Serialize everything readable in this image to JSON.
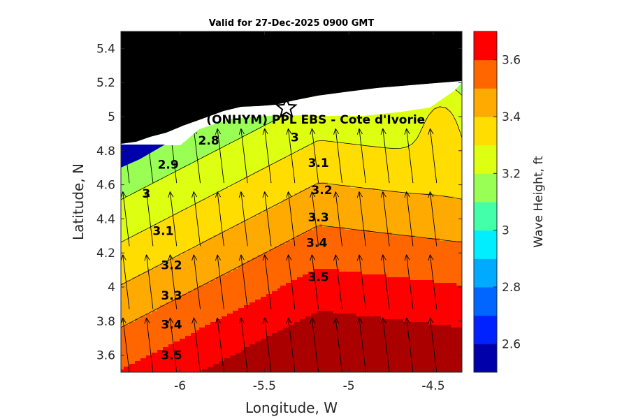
{
  "chart_data": {
    "type": "contour",
    "title": "Valid for 27-Dec-2025 0900 GMT",
    "xlabel": "Longitude, W",
    "ylabel": "Latitude, N",
    "xlim": [
      -6.35,
      -4.33
    ],
    "ylim": [
      3.5,
      5.5
    ],
    "xticks": [
      -6,
      -5.5,
      -5,
      -4.5
    ],
    "xtick_labels": [
      "-6",
      "-5.5",
      "-5",
      "-4.5"
    ],
    "yticks": [
      3.6,
      3.8,
      4.0,
      4.2,
      4.4,
      4.6,
      4.8,
      5.0,
      5.2,
      5.4
    ],
    "ytick_labels": [
      "3.6",
      "3.8",
      "4",
      "4.2",
      "4.4",
      "4.6",
      "4.8",
      "5",
      "5.2",
      "5.4"
    ],
    "colorbar": {
      "label": "Wave Height, ft",
      "range": [
        2.5,
        3.7
      ],
      "ticks": [
        2.6,
        2.8,
        3.0,
        3.2,
        3.4,
        3.6
      ],
      "tick_labels": [
        "2.6",
        "2.8",
        "3",
        "3.2",
        "3.4",
        "3.6"
      ],
      "levels": [
        2.5,
        2.6,
        2.7,
        2.8,
        2.9,
        3.0,
        3.1,
        3.2,
        3.3,
        3.4,
        3.5,
        3.6,
        3.7
      ],
      "colors": [
        "#0000aa",
        "#0022ff",
        "#0066ff",
        "#00aaff",
        "#00eeff",
        "#44ffaa",
        "#99ff55",
        "#ddff11",
        "#ffdd00",
        "#ffaa00",
        "#ff6600",
        "#ff0000",
        "#aa0000"
      ]
    },
    "contour_levels": [
      2.8,
      2.9,
      3.0,
      3.1,
      3.2,
      3.3,
      3.4,
      3.5
    ],
    "contour_labels": [
      {
        "text": "2.8",
        "lon": -5.83,
        "lat": 4.86
      },
      {
        "text": "2.9",
        "lon": -6.07,
        "lat": 4.72
      },
      {
        "text": "3",
        "lon": -5.32,
        "lat": 4.88
      },
      {
        "text": "3",
        "lon": -6.2,
        "lat": 4.55
      },
      {
        "text": "3.1",
        "lon": -5.18,
        "lat": 4.73
      },
      {
        "text": "3.1",
        "lon": -6.1,
        "lat": 4.33
      },
      {
        "text": "3.2",
        "lon": -5.16,
        "lat": 4.57
      },
      {
        "text": "3.2",
        "lon": -6.05,
        "lat": 4.13
      },
      {
        "text": "3.3",
        "lon": -5.18,
        "lat": 4.41
      },
      {
        "text": "3.3",
        "lon": -6.05,
        "lat": 3.95
      },
      {
        "text": "3.4",
        "lon": -5.19,
        "lat": 4.26
      },
      {
        "text": "3.4",
        "lon": -6.05,
        "lat": 3.78
      },
      {
        "text": "3.5",
        "lon": -5.18,
        "lat": 4.06
      },
      {
        "text": "3.5",
        "lon": -6.05,
        "lat": 3.6
      }
    ],
    "station": {
      "label": "(ONHYM) PPL EBS  - Cote d'Ivorie",
      "lon": -5.37,
      "lat": 5.05
    },
    "land_color": "#000000",
    "coast_band_color": "#ffffff",
    "wave_direction": "from south (arrows pointing north, slight northwestward tilt)"
  }
}
